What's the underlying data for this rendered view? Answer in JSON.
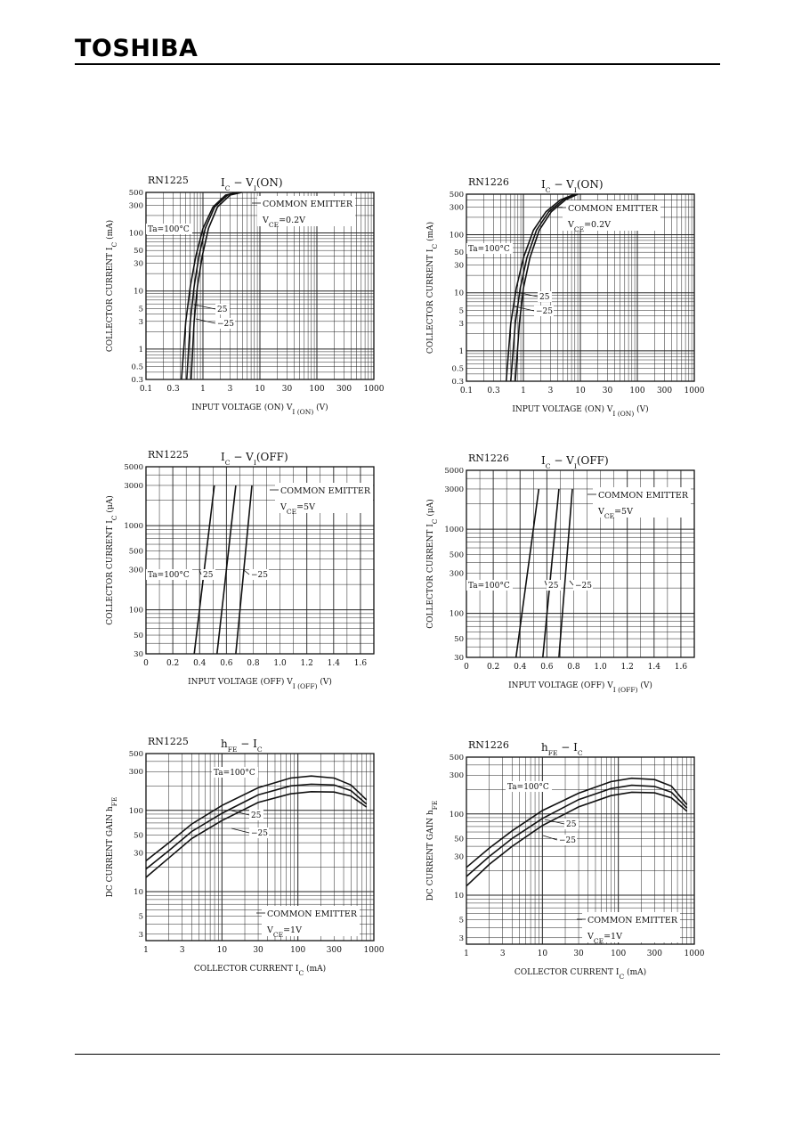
{
  "logo": "TOSHIBA",
  "charts": [
    {
      "type": "line",
      "panel_id": "rn1225-ic-vi-on",
      "device": "RN1225",
      "title": [
        "I",
        "C",
        " − V",
        "I",
        "(ON)"
      ],
      "note_lines": [
        [
          "COMMON EMITTER"
        ],
        [
          "V",
          "CE",
          "=0.2V"
        ]
      ],
      "xlabel": [
        "INPUT VOLTAGE (ON)   V",
        "I (ON)",
        "   (V)"
      ],
      "ylabel": [
        "COLLECTOR CURRENT   I",
        "C",
        "  (mA)"
      ],
      "xscale": "log",
      "yscale": "log",
      "xlim": [
        0.1,
        1000
      ],
      "ylim": [
        0.3,
        500
      ],
      "xticks": [
        0.1,
        0.3,
        1,
        3,
        10,
        30,
        100,
        300,
        1000
      ],
      "xtick_labels": [
        "0.1",
        "0.3",
        "1",
        "3",
        "10",
        "30",
        "100",
        "300",
        "1000"
      ],
      "yticks": [
        0.3,
        0.5,
        1,
        3,
        5,
        10,
        30,
        50,
        100,
        300,
        500
      ],
      "ytick_labels": [
        "0.3",
        "0.5",
        "1",
        "3",
        "5",
        "10",
        "30",
        "50",
        "100",
        "300",
        "500"
      ],
      "series": [
        {
          "label": "Ta=100°C",
          "x": [
            0.42,
            0.5,
            0.6,
            0.75,
            1.0,
            1.5,
            2.5,
            4.0
          ],
          "y": [
            0.3,
            3,
            12,
            40,
            120,
            280,
            450,
            500
          ]
        },
        {
          "label": "25",
          "x": [
            0.52,
            0.6,
            0.7,
            0.85,
            1.1,
            1.6,
            2.7,
            4.3
          ],
          "y": [
            0.3,
            3,
            12,
            40,
            120,
            280,
            450,
            500
          ]
        },
        {
          "label": "−25",
          "x": [
            0.62,
            0.7,
            0.8,
            0.97,
            1.25,
            1.8,
            3.0,
            4.8
          ],
          "y": [
            0.3,
            3,
            12,
            40,
            120,
            280,
            450,
            500
          ]
        }
      ]
    },
    {
      "type": "line",
      "panel_id": "rn1226-ic-vi-on",
      "device": "RN1226",
      "title": [
        "I",
        "C",
        " − V",
        "I",
        "(ON)"
      ],
      "note_lines": [
        [
          "COMMON EMITTER"
        ],
        [
          "V",
          "CE",
          "=0.2V"
        ]
      ],
      "xlabel": [
        "INPUT VOLTAGE (ON)   V",
        "I (ON)",
        "   (V)"
      ],
      "ylabel": [
        "COLLECTOR CURRENT   I",
        "C",
        "  (mA)"
      ],
      "xscale": "log",
      "yscale": "log",
      "xlim": [
        0.1,
        1000
      ],
      "ylim": [
        0.3,
        500
      ],
      "xticks": [
        0.1,
        0.3,
        1,
        3,
        10,
        30,
        100,
        300,
        1000
      ],
      "xtick_labels": [
        "0.1",
        "0.3",
        "1",
        "3",
        "10",
        "30",
        "100",
        "300",
        "1000"
      ],
      "yticks": [
        0.3,
        0.5,
        1,
        3,
        5,
        10,
        30,
        50,
        100,
        300,
        500
      ],
      "ytick_labels": [
        "0.3",
        "0.5",
        "1",
        "3",
        "5",
        "10",
        "30",
        "50",
        "100",
        "300",
        "500"
      ],
      "series": [
        {
          "label": "Ta=100°C",
          "x": [
            0.5,
            0.6,
            0.75,
            1.0,
            1.5,
            2.5,
            4.5,
            8.0
          ],
          "y": [
            0.3,
            3,
            12,
            40,
            120,
            250,
            400,
            500
          ]
        },
        {
          "label": "25",
          "x": [
            0.6,
            0.72,
            0.88,
            1.15,
            1.7,
            2.8,
            5.0,
            8.5
          ],
          "y": [
            0.3,
            3,
            12,
            40,
            120,
            250,
            400,
            500
          ]
        },
        {
          "label": "−25",
          "x": [
            0.72,
            0.85,
            1.0,
            1.3,
            1.9,
            3.1,
            5.5,
            9.0
          ],
          "y": [
            0.3,
            3,
            12,
            40,
            120,
            250,
            400,
            500
          ]
        }
      ]
    },
    {
      "type": "line",
      "panel_id": "rn1225-ic-vi-off",
      "device": "RN1225",
      "title": [
        "I",
        "C",
        " − V",
        "I",
        "(OFF)"
      ],
      "note_lines": [
        [
          "COMMON EMITTER"
        ],
        [
          "V",
          "CE",
          "=5V"
        ]
      ],
      "xlabel": [
        "INPUT VOLTAGE (OFF)   V",
        "I (OFF)",
        "   (V)"
      ],
      "ylabel": [
        "COLLECTOR CURRENT   I",
        "C",
        "  (μA)"
      ],
      "xscale": "linear",
      "yscale": "log",
      "xlim": [
        0,
        1.7
      ],
      "ylim": [
        30,
        5000
      ],
      "xticks": [
        0,
        0.2,
        0.4,
        0.6,
        0.8,
        1.0,
        1.2,
        1.4,
        1.6
      ],
      "xtick_labels": [
        "0",
        "0.2",
        "0.4",
        "0.6",
        "0.8",
        "1.0",
        "1.2",
        "1.4",
        "1.6"
      ],
      "yticks": [
        30,
        50,
        100,
        300,
        500,
        1000,
        3000,
        5000
      ],
      "ytick_labels": [
        "30",
        "50",
        "100",
        "300",
        "500",
        "1000",
        "3000",
        "5000"
      ],
      "series": [
        {
          "label": "Ta=100°C",
          "x": [
            0.36,
            0.51
          ],
          "y": [
            30,
            3000
          ]
        },
        {
          "label": "25",
          "x": [
            0.53,
            0.67
          ],
          "y": [
            30,
            3000
          ]
        },
        {
          "label": "−25",
          "x": [
            0.67,
            0.79
          ],
          "y": [
            30,
            3000
          ]
        }
      ]
    },
    {
      "type": "line",
      "panel_id": "rn1226-ic-vi-off",
      "device": "RN1226",
      "title": [
        "I",
        "C",
        " − V",
        "I",
        "(OFF)"
      ],
      "note_lines": [
        [
          "COMMON EMITTER"
        ],
        [
          "V",
          "CE",
          "=5V"
        ]
      ],
      "xlabel": [
        "INPUT VOLTAGE (OFF)   V",
        "I (OFF)",
        "   (V)"
      ],
      "ylabel": [
        "COLLECTOR CURRENT   I",
        "C",
        "  (μA)"
      ],
      "xscale": "linear",
      "yscale": "log",
      "xlim": [
        0,
        1.7
      ],
      "ylim": [
        30,
        5000
      ],
      "xticks": [
        0,
        0.2,
        0.4,
        0.6,
        0.8,
        1.0,
        1.2,
        1.4,
        1.6
      ],
      "xtick_labels": [
        "0",
        "0.2",
        "0.4",
        "0.6",
        "0.8",
        "1.0",
        "1.2",
        "1.4",
        "1.6"
      ],
      "yticks": [
        30,
        50,
        100,
        300,
        500,
        1000,
        3000,
        5000
      ],
      "ytick_labels": [
        "30",
        "50",
        "100",
        "300",
        "500",
        "1000",
        "3000",
        "5000"
      ],
      "series": [
        {
          "label": "Ta=100°C",
          "x": [
            0.37,
            0.54
          ],
          "y": [
            30,
            3000
          ]
        },
        {
          "label": "25",
          "x": [
            0.57,
            0.69
          ],
          "y": [
            30,
            3000
          ]
        },
        {
          "label": "−25",
          "x": [
            0.69,
            0.79
          ],
          "y": [
            30,
            3000
          ]
        }
      ]
    },
    {
      "type": "line",
      "panel_id": "rn1225-hfe-ic",
      "device": "RN1225",
      "title": [
        "h",
        "FE",
        " − I",
        "C",
        ""
      ],
      "note_lines": [
        [
          "COMMON EMITTER"
        ],
        [
          "V",
          "CE",
          "=1V"
        ]
      ],
      "xlabel": [
        "COLLECTOR CURRENT   I",
        "C",
        "   (mA)"
      ],
      "ylabel": [
        "DC CURRENT GAIN   h",
        "FE",
        ""
      ],
      "xscale": "log",
      "yscale": "log",
      "xlim": [
        1,
        1000
      ],
      "ylim": [
        2.5,
        500
      ],
      "xticks": [
        1,
        3,
        10,
        30,
        100,
        300,
        1000
      ],
      "xtick_labels": [
        "1",
        "3",
        "10",
        "30",
        "100",
        "300",
        "1000"
      ],
      "yticks": [
        3,
        5,
        10,
        30,
        50,
        100,
        300,
        500
      ],
      "ytick_labels": [
        "3",
        "5",
        "10",
        "30",
        "50",
        "100",
        "300",
        "500"
      ],
      "series": [
        {
          "label": "Ta=100°C",
          "x": [
            1,
            2,
            4,
            10,
            30,
            80,
            150,
            300,
            500,
            800
          ],
          "y": [
            24,
            40,
            68,
            115,
            190,
            250,
            265,
            250,
            205,
            135
          ]
        },
        {
          "label": "25",
          "x": [
            1,
            2,
            4,
            10,
            30,
            80,
            150,
            300,
            500,
            800
          ],
          "y": [
            19,
            32,
            55,
            92,
            155,
            200,
            210,
            205,
            175,
            120
          ]
        },
        {
          "label": "−25",
          "x": [
            1,
            2,
            4,
            10,
            30,
            80,
            150,
            300,
            500,
            800
          ],
          "y": [
            15,
            26,
            45,
            75,
            125,
            160,
            170,
            168,
            150,
            110
          ]
        }
      ]
    },
    {
      "type": "line",
      "panel_id": "rn1226-hfe-ic",
      "device": "RN1226",
      "title": [
        "h",
        "FE",
        " − I",
        "C",
        ""
      ],
      "note_lines": [
        [
          "COMMON EMITTER"
        ],
        [
          "V",
          "CE",
          "=1V"
        ]
      ],
      "xlabel": [
        "COLLECTOR CURRENT   I",
        "C",
        "   (mA)"
      ],
      "ylabel": [
        "DC CURRENT GAIN   h",
        "FE",
        ""
      ],
      "xscale": "log",
      "yscale": "log",
      "xlim": [
        1,
        1000
      ],
      "ylim": [
        2.5,
        500
      ],
      "xticks": [
        1,
        3,
        10,
        30,
        100,
        300,
        1000
      ],
      "xtick_labels": [
        "1",
        "3",
        "10",
        "30",
        "100",
        "300",
        "1000"
      ],
      "yticks": [
        3,
        5,
        10,
        30,
        50,
        100,
        300,
        500
      ],
      "ytick_labels": [
        "3",
        "5",
        "10",
        "30",
        "50",
        "100",
        "300",
        "500"
      ],
      "series": [
        {
          "label": "Ta=100°C",
          "x": [
            1,
            2,
            4,
            10,
            30,
            80,
            150,
            300,
            500,
            800
          ],
          "y": [
            22,
            38,
            62,
            110,
            180,
            250,
            275,
            265,
            220,
            130
          ]
        },
        {
          "label": "25",
          "x": [
            1,
            2,
            4,
            10,
            30,
            80,
            150,
            300,
            500,
            800
          ],
          "y": [
            17,
            30,
            50,
            88,
            150,
            205,
            225,
            218,
            185,
            118
          ]
        },
        {
          "label": "−25",
          "x": [
            1,
            2,
            4,
            10,
            30,
            80,
            150,
            300,
            500,
            800
          ],
          "y": [
            13,
            24,
            40,
            72,
            122,
            168,
            185,
            182,
            158,
            108
          ]
        }
      ]
    }
  ]
}
